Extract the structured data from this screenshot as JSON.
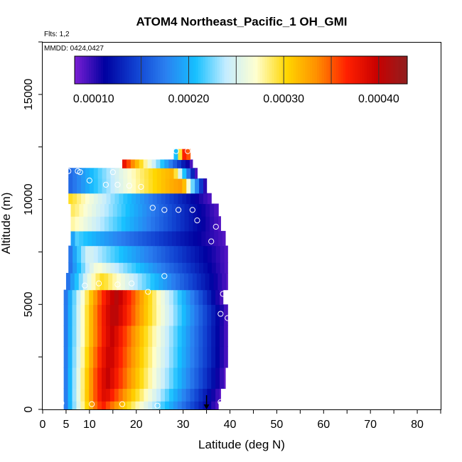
{
  "chart_data": {
    "type": "heatmap",
    "title": "ATOM4 Northeast_Pacific_1 OH_GMI",
    "flights_text": "Flts: 1,2",
    "mmdd_text": "MMDD: 0424,0427",
    "xlabel": "Latitude (deg N)",
    "ylabel": "Altitude (m)",
    "xlim": [
      0,
      85
    ],
    "ylim": [
      0,
      17500
    ],
    "xticks": [
      0,
      5,
      10,
      20,
      30,
      40,
      50,
      60,
      70,
      80
    ],
    "xtick_labels": [
      "0",
      "5",
      "10",
      "20",
      "30",
      "40",
      "50",
      "60",
      "70",
      "80"
    ],
    "yticks": [
      0,
      5000,
      10000,
      15000
    ],
    "ytick_labels": [
      "0",
      "5000",
      "10000",
      "15000"
    ],
    "colorbar": {
      "range": [
        8e-05,
        0.00043
      ],
      "colors": [
        "#7b1fd4",
        "#0000a0",
        "#1040d0",
        "#2a7ff0",
        "#16c0ff",
        "#c4ecff",
        "#ffffd0",
        "#ffd700",
        "#ff9000",
        "#ff2000",
        "#c80000",
        "#902020"
      ],
      "tick_values": [
        0.0001,
        0.0002,
        0.0003,
        0.0004
      ],
      "tick_labels": [
        "0.00010",
        "0.00020",
        "0.00030",
        "0.00040"
      ],
      "dividers": [
        0.00015,
        0.0002,
        0.00025,
        0.0003,
        0.00035,
        0.0004
      ]
    },
    "field_rows": [
      {
        "z0": 0,
        "z1": 400,
        "lat_min": 4.5,
        "lat_max": 37.5,
        "peak_lat": 13,
        "peak": 0.00037
      },
      {
        "z0": 400,
        "z1": 1000,
        "lat_min": 4.5,
        "lat_max": 38,
        "peak_lat": 13.5,
        "peak": 0.00039
      },
      {
        "z0": 1000,
        "z1": 2000,
        "lat_min": 4.5,
        "lat_max": 39,
        "peak_lat": 14,
        "peak": 0.0004
      },
      {
        "z0": 2000,
        "z1": 3000,
        "lat_min": 4.5,
        "lat_max": 39.5,
        "peak_lat": 14.5,
        "peak": 0.0004
      },
      {
        "z0": 3000,
        "z1": 4000,
        "lat_min": 4.5,
        "lat_max": 39.5,
        "peak_lat": 15,
        "peak": 0.0004
      },
      {
        "z0": 4000,
        "z1": 5000,
        "lat_min": 4.5,
        "lat_max": 39.5,
        "peak_lat": 15.5,
        "peak": 0.00041
      },
      {
        "z0": 5000,
        "z1": 5700,
        "lat_min": 4.5,
        "lat_max": 38.5,
        "peak_lat": 16,
        "peak": 0.00041
      },
      {
        "z0": 5700,
        "z1": 6500,
        "lat_min": 5,
        "lat_max": 39.5,
        "peak_lat": 13,
        "peak": 0.0003
      },
      {
        "z0": 6500,
        "z1": 7000,
        "lat_min": 5.5,
        "lat_max": 39.5,
        "peak_lat": 12,
        "peak": 0.00027
      },
      {
        "z0": 7000,
        "z1": 7800,
        "lat_min": 5.5,
        "lat_max": 39.5,
        "peak_lat": 10,
        "peak": 0.00025
      },
      {
        "z0": 7800,
        "z1": 8500,
        "lat_min": 6,
        "lat_max": 39,
        "peak_lat": 7,
        "peak": 0.00022
      },
      {
        "z0": 8500,
        "z1": 9200,
        "lat_min": 6,
        "lat_max": 38,
        "peak_lat": 6.5,
        "peak": 0.00028
      },
      {
        "z0": 9200,
        "z1": 9800,
        "lat_min": 6,
        "lat_max": 37.5,
        "peak_lat": 6.5,
        "peak": 0.00029
      },
      {
        "z0": 9800,
        "z1": 10300,
        "lat_min": 5.5,
        "lat_max": 36,
        "peak_lat": 6,
        "peak": 0.0003
      },
      {
        "z0": 10300,
        "z1": 11000,
        "lat_min": 5.5,
        "lat_max": 35,
        "peak_lat": 30,
        "peak": 0.00033
      },
      {
        "z0": 11000,
        "z1": 11500,
        "lat_min": 5.5,
        "lat_max": 33,
        "peak_lat": 28,
        "peak": 0.00032
      },
      {
        "z0": 11500,
        "z1": 11900,
        "lat_min": 17,
        "lat_max": 32,
        "peak_lat": 17,
        "peak": 0.00039
      },
      {
        "z0": 11900,
        "z1": 12400,
        "lat_min": 28,
        "lat_max": 31.5,
        "peak_lat": 31,
        "peak": 0.00041
      }
    ],
    "points": [
      {
        "lat": 4,
        "alt": 300
      },
      {
        "lat": 10.5,
        "alt": 250
      },
      {
        "lat": 17,
        "alt": 250
      },
      {
        "lat": 24.5,
        "alt": 180
      },
      {
        "lat": 38,
        "alt": 350
      },
      {
        "lat": 4,
        "alt": 5850
      },
      {
        "lat": 9,
        "alt": 5900
      },
      {
        "lat": 12,
        "alt": 6000
      },
      {
        "lat": 16,
        "alt": 5950
      },
      {
        "lat": 19,
        "alt": 6000
      },
      {
        "lat": 22.5,
        "alt": 5600
      },
      {
        "lat": 26,
        "alt": 6350
      },
      {
        "lat": 38.5,
        "alt": 5500
      },
      {
        "lat": 38,
        "alt": 4550
      },
      {
        "lat": 39.5,
        "alt": 4350
      },
      {
        "lat": 36,
        "alt": 8000
      },
      {
        "lat": 37,
        "alt": 8700
      },
      {
        "lat": 33,
        "alt": 9000
      },
      {
        "lat": 32,
        "alt": 9500
      },
      {
        "lat": 29,
        "alt": 9500
      },
      {
        "lat": 26,
        "alt": 9500
      },
      {
        "lat": 23.5,
        "alt": 9600
      },
      {
        "lat": 10,
        "alt": 10900
      },
      {
        "lat": 13.5,
        "alt": 10700
      },
      {
        "lat": 16,
        "alt": 10700
      },
      {
        "lat": 18.5,
        "alt": 10650
      },
      {
        "lat": 21,
        "alt": 10600
      },
      {
        "lat": 15,
        "alt": 11300
      },
      {
        "lat": 5.5,
        "alt": 11350
      },
      {
        "lat": 7.5,
        "alt": 11350
      },
      {
        "lat": 8,
        "alt": 11300
      },
      {
        "lat": 28.5,
        "alt": 12300
      },
      {
        "lat": 31,
        "alt": 12300
      }
    ],
    "marker_lat": 35
  }
}
